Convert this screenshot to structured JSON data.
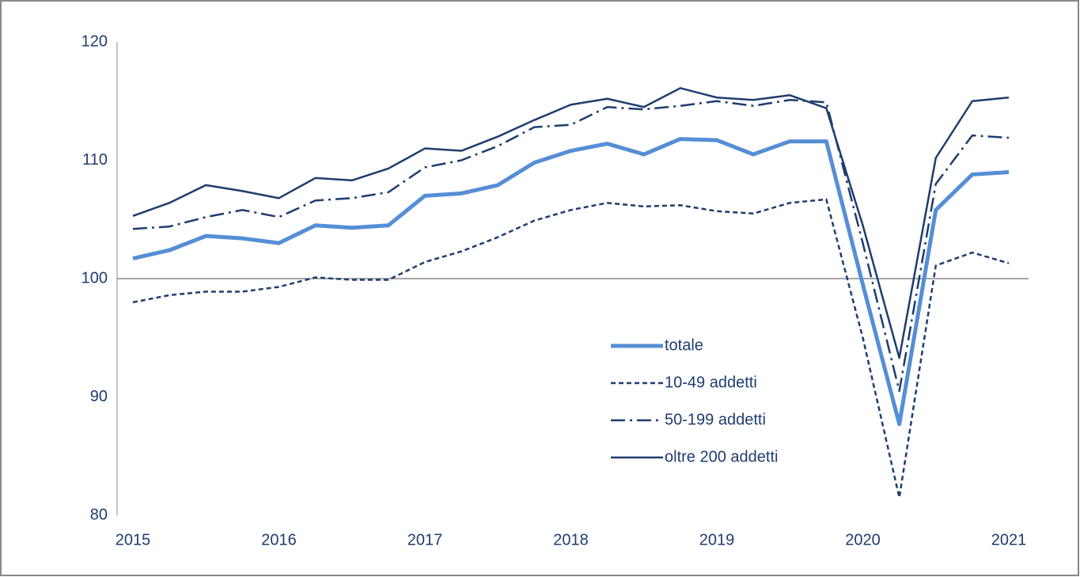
{
  "chart_data": {
    "type": "line",
    "categories": [
      "2015",
      null,
      null,
      null,
      "2016",
      null,
      null,
      null,
      "2017",
      null,
      null,
      null,
      "2018",
      null,
      null,
      null,
      "2019",
      null,
      null,
      null,
      "2020",
      null,
      null,
      null,
      "2021"
    ],
    "ylim": [
      80,
      120
    ],
    "yticks": [
      80,
      90,
      100,
      110,
      120
    ],
    "baseline": 100,
    "grid": false,
    "series": [
      {
        "name": "totale",
        "color": "#558ed5",
        "dash": "solid",
        "width": 5,
        "values": [
          101.7,
          102.4,
          103.6,
          103.4,
          103.0,
          104.5,
          104.3,
          104.5,
          107.0,
          107.2,
          107.9,
          109.8,
          110.8,
          111.4,
          110.5,
          111.8,
          111.7,
          110.5,
          111.6,
          111.6,
          99.5,
          87.7,
          105.8,
          108.8,
          109.0
        ]
      },
      {
        "name": "10-49 addetti",
        "color": "#1f3d6e",
        "dash": "dot",
        "width": 2.5,
        "values": [
          98.0,
          98.6,
          98.9,
          98.9,
          99.3,
          100.1,
          99.9,
          99.9,
          101.4,
          102.3,
          103.5,
          104.9,
          105.8,
          106.4,
          106.1,
          106.2,
          105.7,
          105.5,
          106.4,
          106.7,
          95.0,
          81.5,
          101.1,
          102.2,
          101.3
        ]
      },
      {
        "name": "50-199 addetti",
        "color": "#1f3d6e",
        "dash": "dashdot",
        "width": 2.5,
        "values": [
          104.2,
          104.4,
          105.2,
          105.8,
          105.2,
          106.6,
          106.8,
          107.3,
          109.4,
          110.0,
          111.2,
          112.8,
          113.0,
          114.5,
          114.3,
          114.6,
          115.0,
          114.6,
          115.1,
          114.9,
          103.0,
          90.5,
          108.0,
          112.1,
          111.9
        ]
      },
      {
        "name": "oltre 200 addetti",
        "color": "#1f3d6e",
        "dash": "solid",
        "width": 2.5,
        "values": [
          105.3,
          106.4,
          107.9,
          107.4,
          106.8,
          108.5,
          108.3,
          109.3,
          111.0,
          110.8,
          112.0,
          113.4,
          114.7,
          115.2,
          114.5,
          116.1,
          115.3,
          115.1,
          115.5,
          114.4,
          104.5,
          93.3,
          110.2,
          115.0,
          115.3
        ]
      }
    ]
  }
}
